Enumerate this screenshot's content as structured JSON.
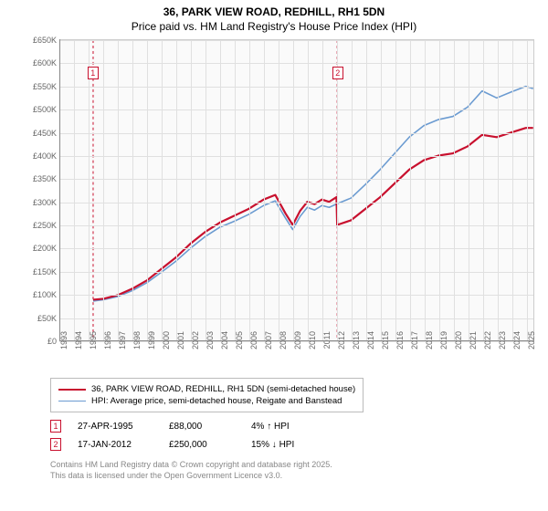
{
  "title": "36, PARK VIEW ROAD, REDHILL, RH1 5DN",
  "subtitle": "Price paid vs. HM Land Registry's House Price Index (HPI)",
  "chart": {
    "type": "line",
    "background_color": "#fafafa",
    "grid_color": "#e0e0e0",
    "axis_color": "#888888",
    "xlim": [
      1993,
      2025.5
    ],
    "ylim": [
      0,
      650000
    ],
    "ytick_step": 50000,
    "ytick_labels": [
      "£0",
      "£50K",
      "£100K",
      "£150K",
      "£200K",
      "£250K",
      "£300K",
      "£350K",
      "£400K",
      "£450K",
      "£500K",
      "£550K",
      "£600K",
      "£650K"
    ],
    "xtick_step": 1,
    "xtick_labels": [
      "1993",
      "1994",
      "1995",
      "1996",
      "1997",
      "1998",
      "1999",
      "2000",
      "2001",
      "2002",
      "2003",
      "2004",
      "2005",
      "2006",
      "2007",
      "2008",
      "2009",
      "2010",
      "2011",
      "2012",
      "2013",
      "2014",
      "2015",
      "2016",
      "2017",
      "2018",
      "2019",
      "2020",
      "2021",
      "2022",
      "2023",
      "2024",
      "2025"
    ],
    "series": [
      {
        "name": "36, PARK VIEW ROAD, REDHILL, RH1 5DN (semi-detached house)",
        "color": "#c8102e",
        "line_width": 2.2,
        "x": [
          1995.3,
          1996,
          1997,
          1998,
          1999,
          2000,
          2001,
          2002,
          2003,
          2004,
          2005,
          2006,
          2007,
          2007.8,
          2008.5,
          2009,
          2009.5,
          2010,
          2010.5,
          2011,
          2011.5,
          2012.0,
          2012.05,
          2013,
          2014,
          2015,
          2016,
          2017,
          2018,
          2019,
          2020,
          2021,
          2022,
          2023,
          2024,
          2025,
          2025.5
        ],
        "y": [
          88000,
          90000,
          98000,
          112000,
          130000,
          155000,
          180000,
          210000,
          235000,
          255000,
          270000,
          285000,
          305000,
          315000,
          275000,
          250000,
          280000,
          300000,
          295000,
          305000,
          300000,
          310000,
          250000,
          260000,
          285000,
          310000,
          340000,
          370000,
          390000,
          400000,
          405000,
          420000,
          445000,
          440000,
          450000,
          460000,
          460000
        ]
      },
      {
        "name": "HPI: Average price, semi-detached house, Reigate and Banstead",
        "color": "#6b9bd1",
        "line_width": 1.6,
        "x": [
          1995.3,
          1996,
          1997,
          1998,
          1999,
          2000,
          2001,
          2002,
          2003,
          2004,
          2005,
          2006,
          2007,
          2007.8,
          2008.5,
          2009,
          2009.5,
          2010,
          2010.5,
          2011,
          2011.5,
          2012,
          2013,
          2014,
          2015,
          2016,
          2017,
          2018,
          2019,
          2020,
          2021,
          2022,
          2023,
          2024,
          2025,
          2025.5
        ],
        "y": [
          85000,
          88000,
          95000,
          108000,
          125000,
          148000,
          172000,
          200000,
          225000,
          245000,
          258000,
          273000,
          292000,
          302000,
          265000,
          240000,
          268000,
          288000,
          282000,
          292000,
          288000,
          295000,
          308000,
          338000,
          370000,
          405000,
          440000,
          465000,
          478000,
          485000,
          505000,
          540000,
          525000,
          538000,
          550000,
          545000
        ]
      }
    ],
    "markers": [
      {
        "n": "1",
        "x": 1995.3,
        "y": 580000,
        "color": "#c8102e"
      },
      {
        "n": "2",
        "x": 2012.05,
        "y": 580000,
        "color": "#c8102e"
      }
    ],
    "marker_lines": [
      {
        "x": 1995.3,
        "color": "#c8102e",
        "dash": "3,3"
      },
      {
        "x": 2012.05,
        "color": "#c8102e",
        "dash": "3,3"
      }
    ]
  },
  "legend": {
    "items": [
      {
        "color": "#c8102e",
        "width": 2.2,
        "label": "36, PARK VIEW ROAD, REDHILL, RH1 5DN (semi-detached house)"
      },
      {
        "color": "#6b9bd1",
        "width": 1.6,
        "label": "HPI: Average price, semi-detached house, Reigate and Banstead"
      }
    ]
  },
  "marker_info": [
    {
      "n": "1",
      "date": "27-APR-1995",
      "price": "£88,000",
      "delta": "4% ↑ HPI"
    },
    {
      "n": "2",
      "date": "17-JAN-2012",
      "price": "£250,000",
      "delta": "15% ↓ HPI"
    }
  ],
  "footer": {
    "line1": "Contains HM Land Registry data © Crown copyright and database right 2025.",
    "line2": "This data is licensed under the Open Government Licence v3.0."
  }
}
